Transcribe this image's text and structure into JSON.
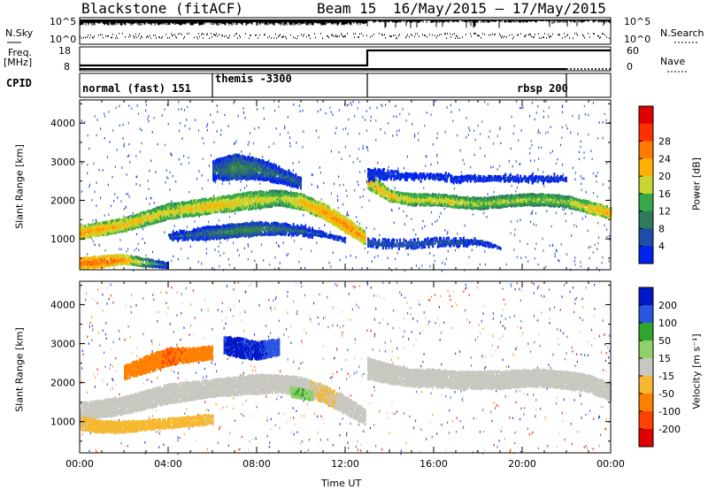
{
  "header": {
    "station": "Blackstone (fitACF)",
    "beam": "Beam 15",
    "date_range": "16/May/2015 – 17/May/2015"
  },
  "top_panels": {
    "nsky_label": "N.Sky",
    "nsearch_label": "N.Search",
    "freq_label": "Freq.",
    "mhz_label": "[MHz]",
    "nave_label": "Nave",
    "cpid_label": "CPID",
    "left_ticks": {
      "nsky_top": "10^5",
      "nsky_bottom": "10^0",
      "freq_top": "18",
      "freq_bottom": "8"
    },
    "right_ticks": {
      "nsearch_top": "10^5",
      "nsearch_bottom": "10^0",
      "nave_top": "60",
      "nave_bottom": "0"
    }
  },
  "cpid_segments": [
    {
      "label": "normal (fast) 151",
      "start_hour": 0,
      "end_hour": 6
    },
    {
      "label": "themis -3300",
      "start_hour": 6,
      "end_hour": 13
    },
    {
      "label": "rbsp 200",
      "start_hour": 13,
      "end_hour": 22
    },
    {
      "label": "",
      "start_hour": 22,
      "end_hour": 24
    }
  ],
  "colors": {
    "power_scale": [
      "#0022ee",
      "#1f4ea8",
      "#2f7a5a",
      "#35a84a",
      "#c7d630",
      "#ffb000",
      "#ff7a00",
      "#ff3000",
      "#e00000"
    ],
    "velocity_scale": [
      "#0018c8",
      "#2a55e0",
      "#2fa52f",
      "#8fd06a",
      "#c8c8c0",
      "#f5b830",
      "#ff8000",
      "#ff4000",
      "#e00000"
    ]
  },
  "chart_data": [
    {
      "type": "heatmap",
      "name": "power",
      "x": {
        "label": "",
        "ticks": [
          "00:00",
          "04:00",
          "08:00",
          "12:00",
          "16:00",
          "20:00",
          "00:00"
        ],
        "range_hours": [
          0,
          24
        ]
      },
      "y": {
        "label": "Slant Range [km]",
        "ticks": [
          "1000",
          "2000",
          "3000",
          "4000"
        ],
        "range_km": [
          200,
          4600
        ]
      },
      "colorbar": {
        "label": "Power [dB]",
        "ticks": [
          "4",
          "8",
          "12",
          "16",
          "20",
          "24",
          "28"
        ],
        "range": [
          0,
          32
        ]
      },
      "bands": [
        {
          "hours": [
            0,
            2,
            4,
            6,
            8,
            9,
            10,
            11,
            12,
            12.9
          ],
          "center_km": [
            1200,
            1400,
            1750,
            1900,
            2050,
            2100,
            2000,
            1750,
            1400,
            1050
          ],
          "width_km": [
            300,
            300,
            350,
            350,
            400,
            350,
            350,
            350,
            350,
            300
          ],
          "power_db": [
            24,
            22,
            20,
            22,
            20,
            18,
            22,
            24,
            26,
            24
          ]
        },
        {
          "hours": [
            0,
            1,
            2,
            3,
            4
          ],
          "center_km": [
            400,
            450,
            500,
            420,
            350
          ],
          "width_km": [
            250,
            250,
            200,
            150,
            100
          ],
          "power_db": [
            28,
            28,
            26,
            16,
            8
          ]
        },
        {
          "hours": [
            13,
            14,
            15,
            16,
            17,
            18,
            19,
            20,
            21,
            22,
            23,
            24
          ],
          "center_km": [
            2550,
            2150,
            2050,
            2050,
            2000,
            1950,
            2000,
            2050,
            2050,
            2000,
            1850,
            1700
          ],
          "width_km": [
            400,
            250,
            250,
            250,
            250,
            250,
            250,
            250,
            250,
            250,
            250,
            250
          ],
          "power_db": [
            22,
            22,
            20,
            20,
            20,
            18,
            18,
            18,
            18,
            18,
            22,
            24
          ]
        },
        {
          "hours": [
            13,
            14,
            15,
            16,
            17,
            18,
            19
          ],
          "center_km": [
            950,
            900,
            900,
            950,
            950,
            950,
            800
          ],
          "width_km": [
            200,
            200,
            200,
            200,
            200,
            200,
            150
          ],
          "power_db": [
            8,
            8,
            8,
            8,
            8,
            6,
            4
          ]
        },
        {
          "hours": [
            13,
            14,
            15,
            16,
            17,
            18,
            19,
            20,
            21,
            22
          ],
          "center_km": [
            2700,
            2700,
            2650,
            2650,
            2600,
            2600,
            2600,
            2600,
            2600,
            2600
          ],
          "width_km": [
            500,
            400,
            350,
            300,
            300,
            300,
            300,
            300,
            300,
            300
          ],
          "power_db": [
            4,
            4,
            4,
            4,
            4,
            4,
            4,
            4,
            4,
            4
          ]
        },
        {
          "hours": [
            6,
            7,
            8,
            9,
            10
          ],
          "center_km": [
            2800,
            2900,
            2850,
            2700,
            2500
          ],
          "width_km": [
            500,
            600,
            500,
            400,
            300
          ],
          "power_db": [
            8,
            12,
            10,
            8,
            8
          ]
        },
        {
          "hours": [
            4,
            5,
            6,
            7,
            8,
            9,
            10,
            11,
            12
          ],
          "center_km": [
            1100,
            1150,
            1200,
            1250,
            1300,
            1300,
            1250,
            1150,
            1000
          ],
          "width_km": [
            200,
            250,
            300,
            300,
            300,
            250,
            250,
            200,
            200
          ],
          "power_db": [
            6,
            8,
            10,
            12,
            12,
            10,
            8,
            6,
            6
          ]
        }
      ]
    },
    {
      "type": "heatmap",
      "name": "velocity",
      "x": {
        "label": "Time UT",
        "ticks": [
          "00:00",
          "04:00",
          "08:00",
          "12:00",
          "16:00",
          "20:00",
          "00:00"
        ],
        "range_hours": [
          0,
          24
        ]
      },
      "y": {
        "label": "Slant Range [km]",
        "ticks": [
          "1000",
          "2000",
          "3000",
          "4000"
        ],
        "range_km": [
          200,
          4600
        ]
      },
      "colorbar": {
        "label": "Velocity [m s⁻¹]",
        "ticks": [
          "200",
          "100",
          "50",
          "15",
          "-15",
          "-50",
          "-100",
          "-200"
        ],
        "range": [
          -250,
          250
        ]
      },
      "bands": [
        {
          "hours": [
            0,
            2,
            4,
            6,
            8,
            9,
            10,
            11,
            12,
            12.9
          ],
          "center_km": [
            1300,
            1450,
            1750,
            1900,
            2000,
            2000,
            1950,
            1750,
            1450,
            1150
          ],
          "width_km": [
            400,
            400,
            450,
            400,
            450,
            400,
            400,
            400,
            400,
            350
          ],
          "velocity": [
            0,
            0,
            0,
            0,
            0,
            0,
            0,
            -20,
            0,
            0
          ]
        },
        {
          "hours": [
            13,
            14,
            15,
            16,
            17,
            18,
            19,
            20,
            21,
            22,
            23,
            24
          ],
          "center_km": [
            2400,
            2250,
            2150,
            2150,
            2100,
            2100,
            2100,
            2150,
            2150,
            2100,
            2000,
            1800
          ],
          "width_km": [
            500,
            450,
            400,
            400,
            400,
            400,
            400,
            400,
            400,
            400,
            400,
            400
          ],
          "velocity": [
            0,
            0,
            0,
            0,
            0,
            0,
            0,
            0,
            0,
            0,
            0,
            0
          ]
        },
        {
          "hours": [
            2,
            3,
            4,
            5,
            6
          ],
          "center_km": [
            2300,
            2500,
            2700,
            2750,
            2800
          ],
          "width_km": [
            300,
            400,
            400,
            300,
            300
          ],
          "velocity": [
            -60,
            -80,
            -100,
            -90,
            -70
          ]
        },
        {
          "hours": [
            6.5,
            7,
            7.5,
            8,
            8.5,
            9
          ],
          "center_km": [
            3000,
            2950,
            2900,
            2850,
            2900,
            2950
          ],
          "width_km": [
            400,
            450,
            450,
            400,
            400,
            350
          ],
          "velocity": [
            200,
            220,
            200,
            210,
            190,
            180
          ]
        },
        {
          "hours": [
            9.5,
            10,
            10.5
          ],
          "center_km": [
            1800,
            1750,
            1700
          ],
          "width_km": [
            200,
            200,
            200
          ],
          "velocity": [
            40,
            50,
            40
          ]
        },
        {
          "hours": [
            0,
            1,
            2,
            3,
            4,
            5,
            6
          ],
          "center_km": [
            1000,
            900,
            900,
            950,
            1000,
            1050,
            1100
          ],
          "width_km": [
            300,
            250,
            250,
            200,
            200,
            200,
            200
          ],
          "velocity": [
            -20,
            -30,
            -30,
            -40,
            -40,
            -30,
            -20
          ]
        }
      ]
    }
  ]
}
